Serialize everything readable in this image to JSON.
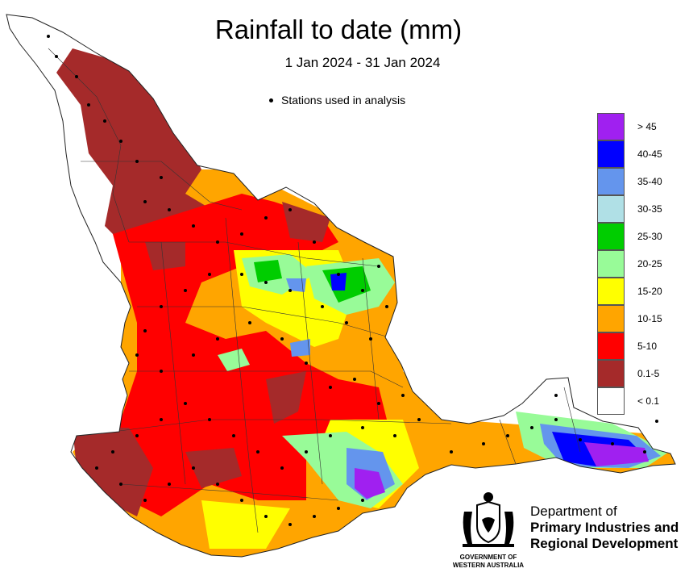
{
  "title": "Rainfall to date (mm)",
  "subtitle": "1 Jan 2024 - 31 Jan 2024",
  "stations_note": "Stations used in analysis",
  "legend": {
    "items": [
      {
        "label": "> 45",
        "color": "#a020f0"
      },
      {
        "label": "40-45",
        "color": "#0000ff"
      },
      {
        "label": "35-40",
        "color": "#6495ed"
      },
      {
        "label": "30-35",
        "color": "#b0e0e6"
      },
      {
        "label": "25-30",
        "color": "#00cd00"
      },
      {
        "label": "20-25",
        "color": "#98fb98"
      },
      {
        "label": "15-20",
        "color": "#ffff00"
      },
      {
        "label": "10-15",
        "color": "#ffa500"
      },
      {
        "label": "5-10",
        "color": "#ff0000"
      },
      {
        "label": "0.1-5",
        "color": "#a52a2a"
      },
      {
        "label": "< 0.1",
        "color": "#ffffff"
      }
    ]
  },
  "agency": {
    "line1": "Department of",
    "line2": "Primary Industries and",
    "line3": "Regional Development"
  },
  "crest": {
    "caption_line1": "GOVERNMENT OF",
    "caption_line2": "WESTERN AUSTRALIA"
  }
}
